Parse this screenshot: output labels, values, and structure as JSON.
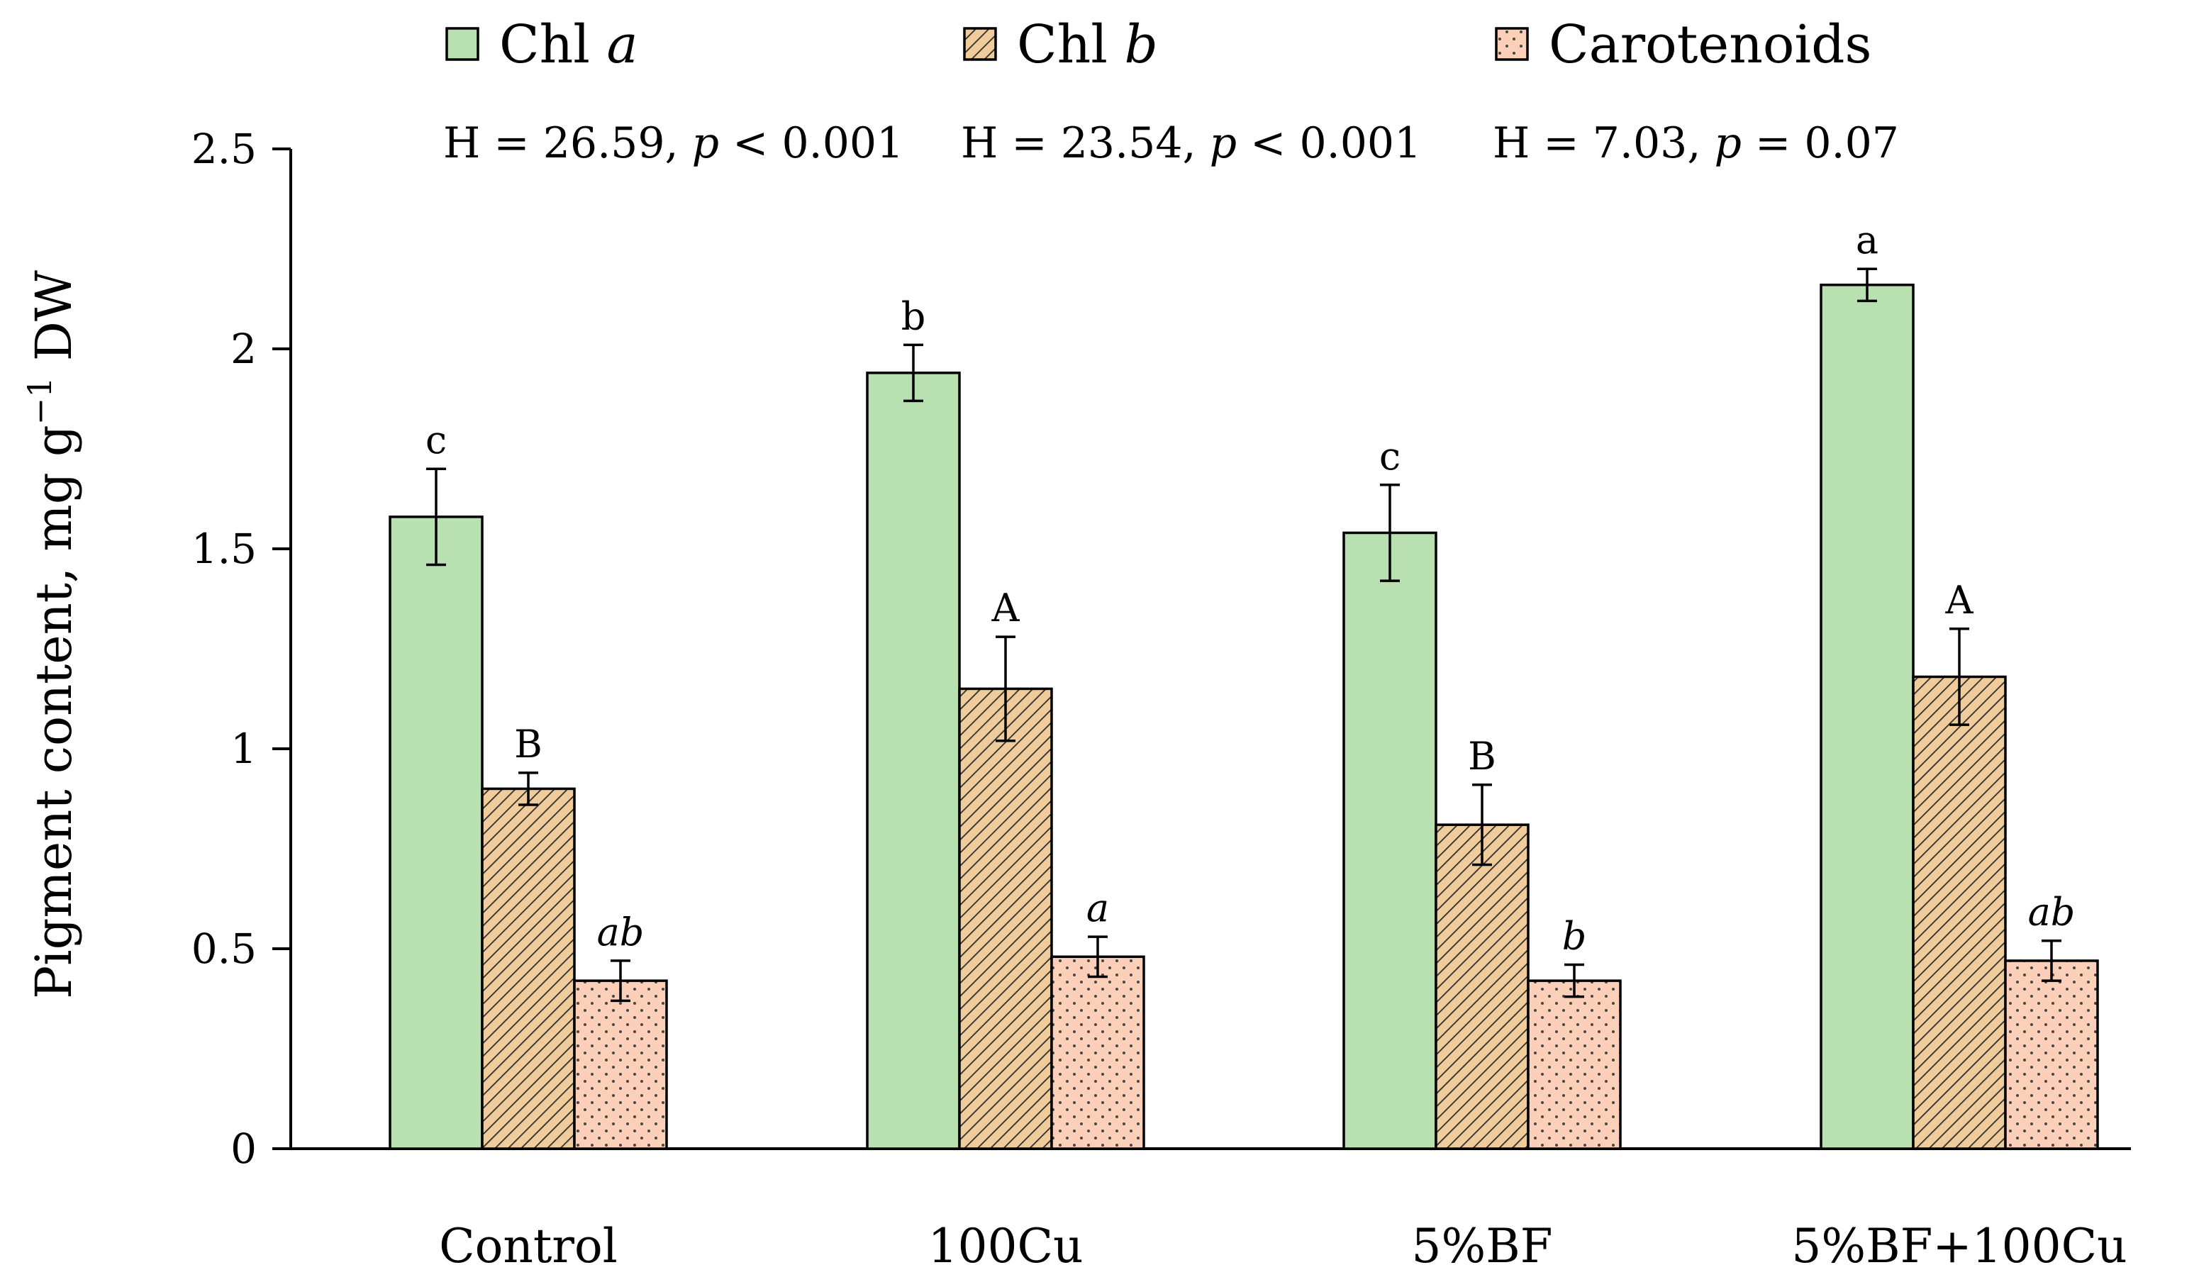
{
  "chart_data": {
    "type": "bar",
    "title": "",
    "xlabel": "",
    "ylabel": {
      "prefix": "Pigment content,  mg g",
      "sup": "−1",
      "suffix": " DW"
    },
    "ylim": [
      0,
      2.5
    ],
    "yticks": [
      "0",
      "0.5",
      "1",
      "1.5",
      "2",
      "2.5"
    ],
    "categories": [
      "Control",
      "100Cu",
      "5%BF",
      "5%BF+100Cu"
    ],
    "legend_position": "top",
    "series": [
      {
        "name": {
          "text": "Chl ",
          "italic": "a"
        },
        "fill": "#b8e0b0",
        "pattern": "solid",
        "values": [
          1.58,
          1.94,
          1.54,
          2.16
        ],
        "errors": [
          0.12,
          0.07,
          0.12,
          0.04
        ],
        "sig": [
          "c",
          "b",
          "c",
          "a"
        ],
        "sig_italic": false,
        "stat": {
          "h": "H = 26.59,  ",
          "p": "p",
          "rest": " < 0.001"
        }
      },
      {
        "name": {
          "text": "Chl ",
          "italic": "b"
        },
        "fill": "#f0cc9c",
        "pattern": "hatch",
        "values": [
          0.9,
          1.15,
          0.81,
          1.18
        ],
        "errors": [
          0.04,
          0.13,
          0.1,
          0.12
        ],
        "sig": [
          "B",
          "A",
          "B",
          "A"
        ],
        "sig_italic": false,
        "stat": {
          "h": "H = 23.54, ",
          "p": "p",
          "rest": " < 0.001"
        }
      },
      {
        "name": {
          "text": "Carotenoids",
          "italic": ""
        },
        "fill": "#fbcfb8",
        "pattern": "dots",
        "values": [
          0.42,
          0.48,
          0.42,
          0.47
        ],
        "errors": [
          0.05,
          0.05,
          0.04,
          0.05
        ],
        "sig": [
          "ab",
          "a",
          "b",
          "ab"
        ],
        "sig_italic": true,
        "stat": {
          "h": "H = 7.03, ",
          "p": "p",
          "rest": " = 0.07"
        }
      }
    ]
  }
}
